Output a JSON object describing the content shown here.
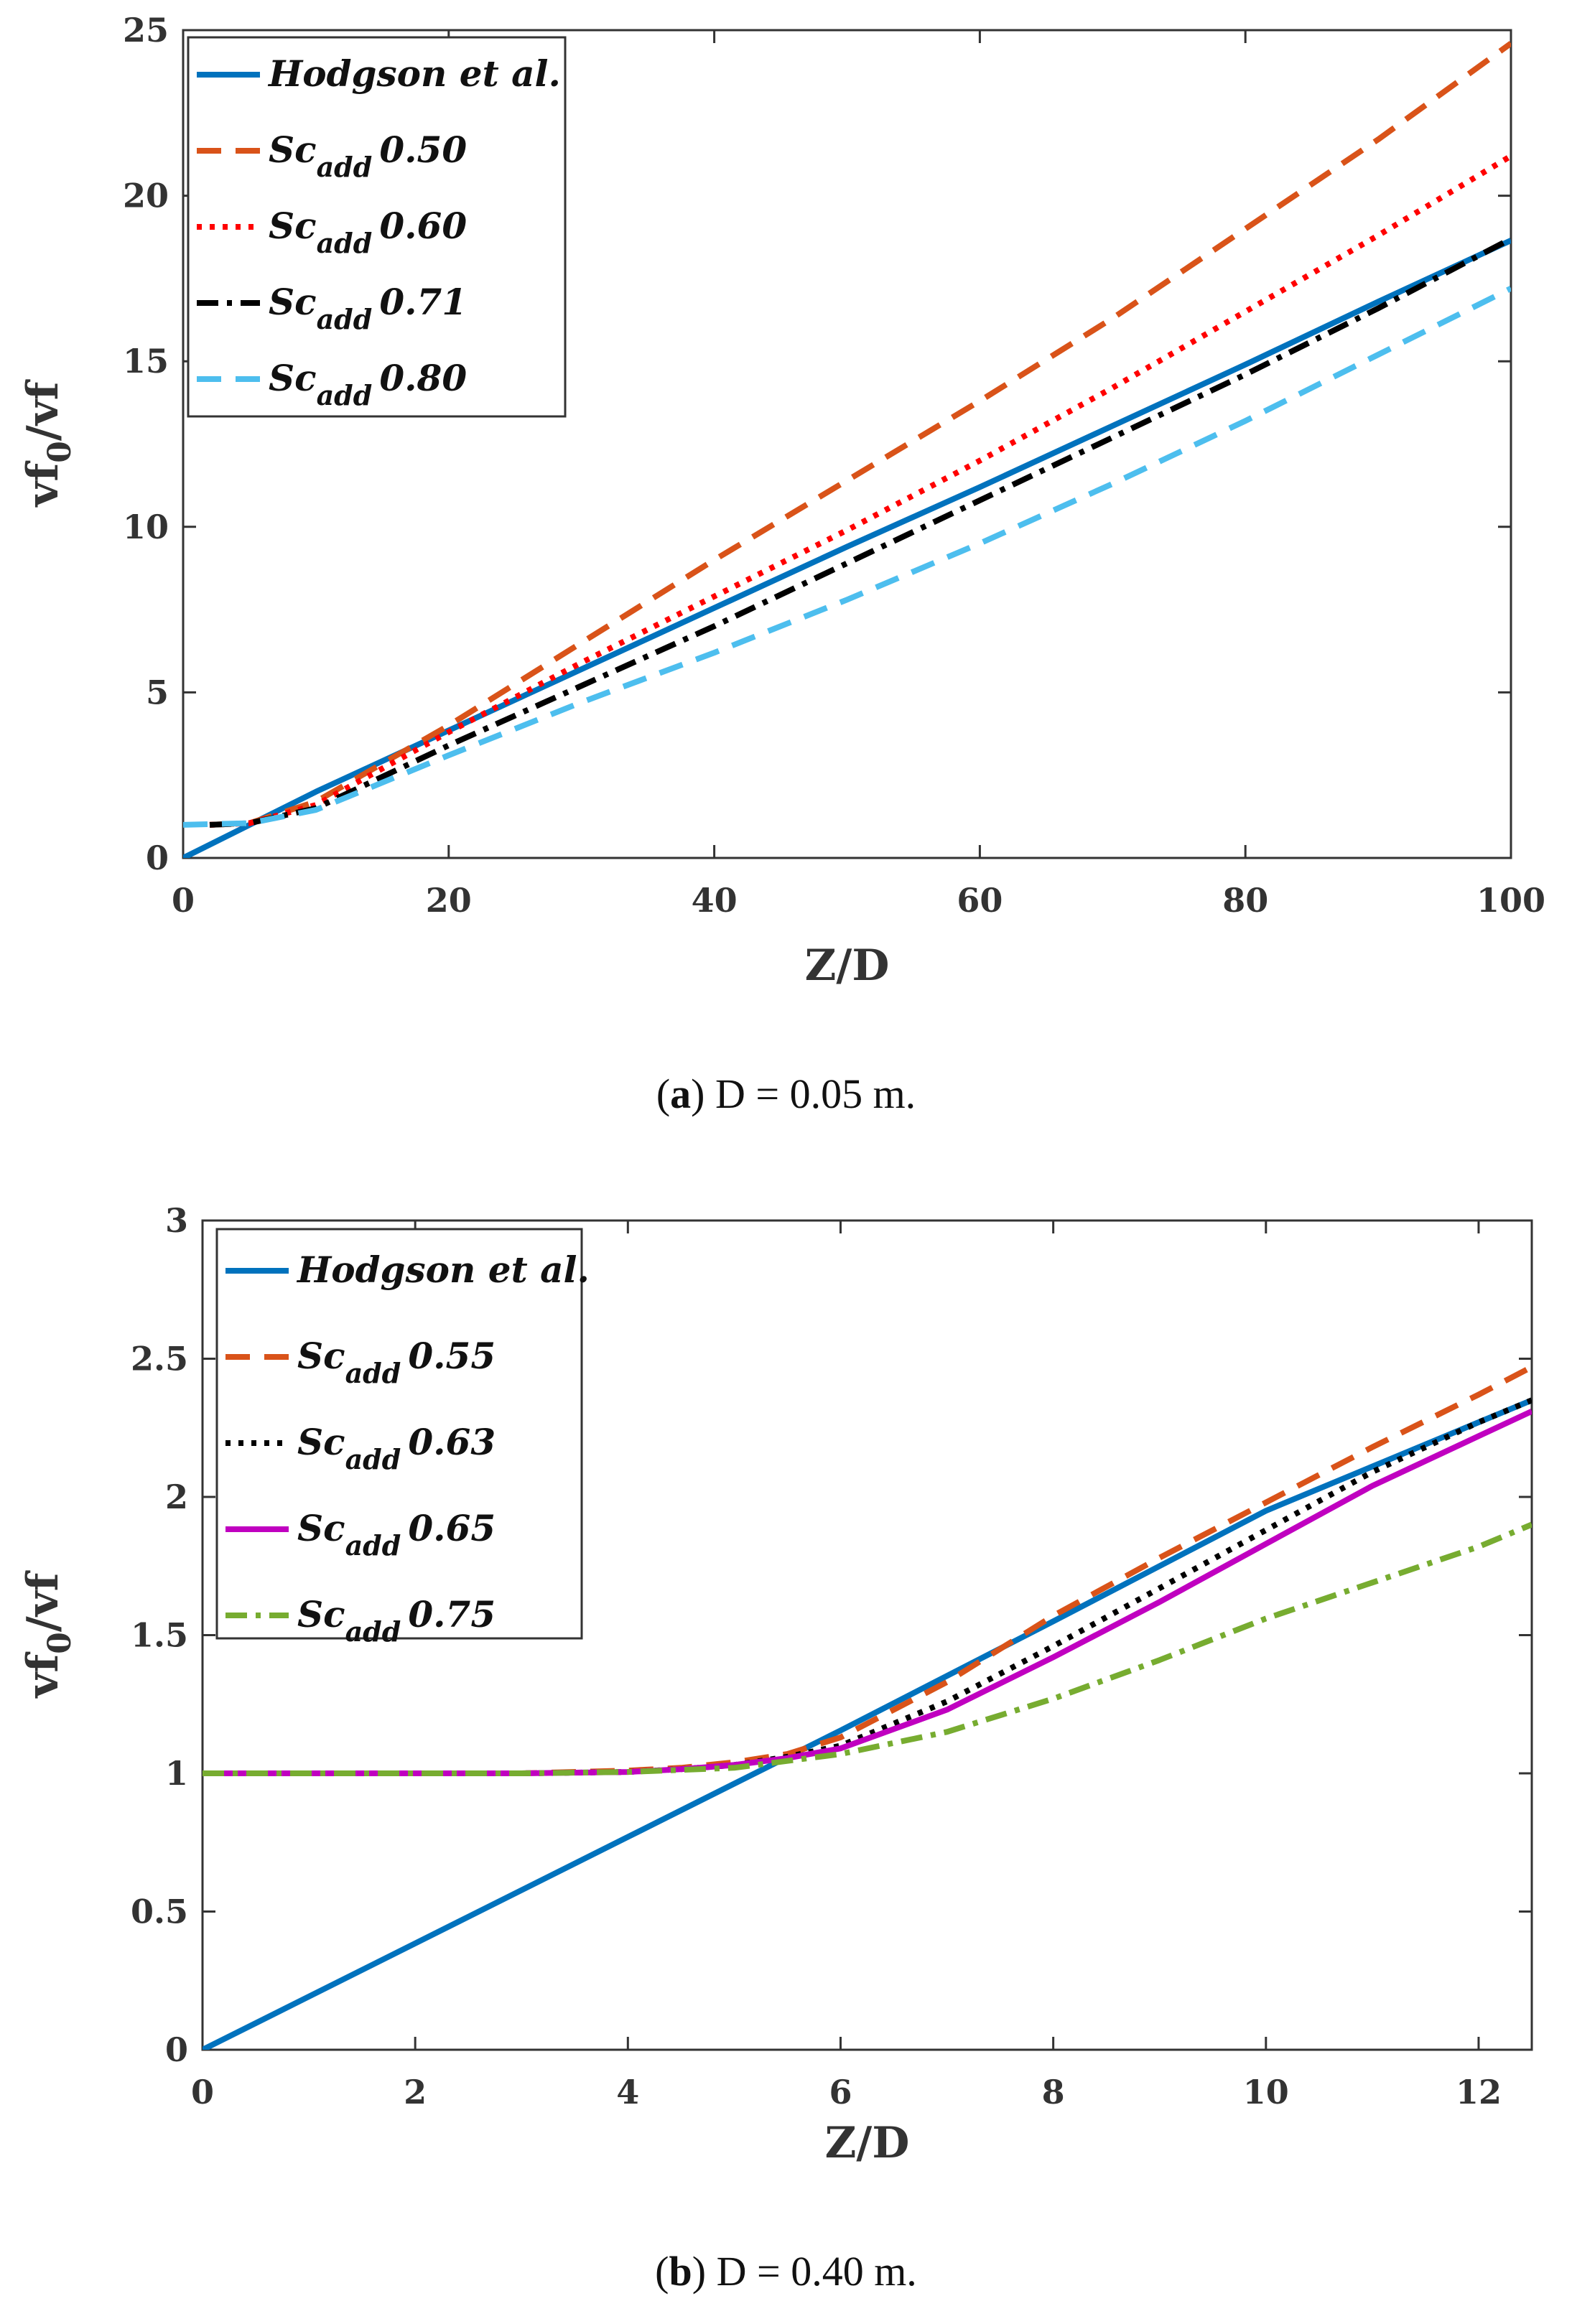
{
  "chart_data": [
    {
      "type": "line",
      "caption": {
        "letter": "a",
        "text": "D = 0.05 m."
      },
      "xlabel": "Z/D",
      "ylabel": {
        "base": "vf",
        "sub": "0",
        "rest": "/vf"
      },
      "xlim": [
        0,
        100
      ],
      "ylim": [
        0,
        25
      ],
      "xticks": [
        "0",
        "20",
        "40",
        "60",
        "80",
        "100"
      ],
      "yticks": [
        "0",
        "5",
        "10",
        "15",
        "20",
        "25"
      ],
      "legend_position": "top-left",
      "series": [
        {
          "name": "Hodgson et al.",
          "label": "Hodgson et al.",
          "color": "#0072BD",
          "dash": "solid",
          "x": [
            0,
            10,
            20,
            30,
            40,
            50,
            60,
            70,
            80,
            90,
            100
          ],
          "y": [
            0,
            2.0,
            3.85,
            5.7,
            7.55,
            9.4,
            11.2,
            13.05,
            14.9,
            16.8,
            18.65
          ]
        },
        {
          "name": "Sc_add 0.50",
          "label": "Sc",
          "sub": "add",
          "value": "0.50",
          "color": "#D95319",
          "dash": "dashed",
          "x": [
            2,
            5,
            10,
            20,
            30,
            40,
            50,
            60,
            70,
            80,
            90,
            100
          ],
          "y": [
            1.0,
            1.05,
            1.7,
            4.0,
            6.5,
            9.0,
            11.4,
            13.8,
            16.3,
            19.0,
            21.7,
            24.6
          ]
        },
        {
          "name": "Sc_add 0.60",
          "label": "Sc",
          "sub": "add",
          "value": "0.60",
          "color": "#FF0000",
          "dash": "dotted",
          "x": [
            2,
            5,
            10,
            20,
            30,
            40,
            50,
            60,
            70,
            80,
            90,
            100
          ],
          "y": [
            1.0,
            1.05,
            1.6,
            3.8,
            5.9,
            7.9,
            9.9,
            12.0,
            14.2,
            16.5,
            18.8,
            21.2
          ]
        },
        {
          "name": "Sc_add 0.71",
          "label": "Sc",
          "sub": "add",
          "value": "0.71",
          "color": "#000000",
          "dash": "dashdot",
          "x": [
            2,
            5,
            10,
            20,
            30,
            40,
            50,
            60,
            70,
            80,
            90,
            100
          ],
          "y": [
            1.0,
            1.05,
            1.5,
            3.4,
            5.2,
            7.0,
            8.9,
            10.8,
            12.7,
            14.6,
            16.6,
            18.7
          ]
        },
        {
          "name": "Sc_add 0.80",
          "label": "Sc",
          "sub": "add",
          "value": "0.80",
          "color": "#4DBEEE",
          "dash": "dashed",
          "x": [
            0,
            5,
            10,
            20,
            30,
            40,
            50,
            60,
            70,
            80,
            90,
            100
          ],
          "y": [
            1.0,
            1.05,
            1.45,
            3.1,
            4.7,
            6.2,
            7.8,
            9.5,
            11.3,
            13.2,
            15.2,
            17.2
          ]
        }
      ]
    },
    {
      "type": "line",
      "caption": {
        "letter": "b",
        "text": "D = 0.40 m."
      },
      "xlabel": "Z/D",
      "ylabel": {
        "base": "vf",
        "sub": "0",
        "rest": "/vf"
      },
      "xlim": [
        0,
        12.5
      ],
      "ylim": [
        0,
        3
      ],
      "xticks": [
        "0",
        "2",
        "4",
        "6",
        "8",
        "10",
        "12"
      ],
      "yticks": [
        "0",
        "0.5",
        "1",
        "1.5",
        "2",
        "2.5",
        "3"
      ],
      "legend_position": "top-left",
      "series": [
        {
          "name": "Hodgson et al.",
          "label": "Hodgson et al.",
          "color": "#0072BD",
          "dash": "solid",
          "x": [
            0,
            2,
            4,
            6,
            8,
            10,
            12,
            12.5
          ],
          "y": [
            0,
            0.385,
            0.77,
            1.155,
            1.55,
            1.95,
            2.27,
            2.35
          ]
        },
        {
          "name": "Sc_add 0.55",
          "label": "Sc",
          "sub": "add",
          "value": "0.55",
          "color": "#D95319",
          "dash": "dashed",
          "x": [
            0,
            3,
            4,
            4.5,
            5,
            5.5,
            6,
            7,
            8,
            9,
            10,
            11,
            12,
            12.5
          ],
          "y": [
            1.0,
            1.0,
            1.01,
            1.02,
            1.04,
            1.07,
            1.13,
            1.33,
            1.57,
            1.78,
            1.98,
            2.18,
            2.37,
            2.47
          ]
        },
        {
          "name": "Sc_add 0.63",
          "label": "Sc",
          "sub": "add",
          "value": "0.63",
          "color": "#000000",
          "dash": "dotted",
          "x": [
            0,
            3,
            4,
            4.5,
            5,
            5.5,
            6,
            7,
            8,
            9,
            10,
            11,
            12,
            12.5
          ],
          "y": [
            1.0,
            1.0,
            1.005,
            1.015,
            1.03,
            1.06,
            1.1,
            1.26,
            1.46,
            1.67,
            1.88,
            2.09,
            2.27,
            2.35
          ]
        },
        {
          "name": "Sc_add 0.65",
          "label": "Sc",
          "sub": "add",
          "value": "0.65",
          "color": "#C000C0",
          "dash": "solid",
          "x": [
            0,
            3,
            4,
            4.5,
            5,
            5.5,
            6,
            7,
            8,
            9,
            10,
            11,
            12,
            12.5
          ],
          "y": [
            1.0,
            1.0,
            1.005,
            1.015,
            1.03,
            1.055,
            1.09,
            1.23,
            1.42,
            1.62,
            1.83,
            2.04,
            2.22,
            2.31
          ]
        },
        {
          "name": "Sc_add 0.75",
          "label": "Sc",
          "sub": "add",
          "value": "0.75",
          "color": "#77AC30",
          "dash": "dashdot",
          "x": [
            0,
            3,
            4,
            5,
            6,
            7,
            8,
            9,
            10,
            11,
            12,
            12.5
          ],
          "y": [
            1.0,
            1.0,
            1.005,
            1.02,
            1.07,
            1.15,
            1.27,
            1.41,
            1.56,
            1.69,
            1.82,
            1.9
          ]
        }
      ]
    }
  ]
}
